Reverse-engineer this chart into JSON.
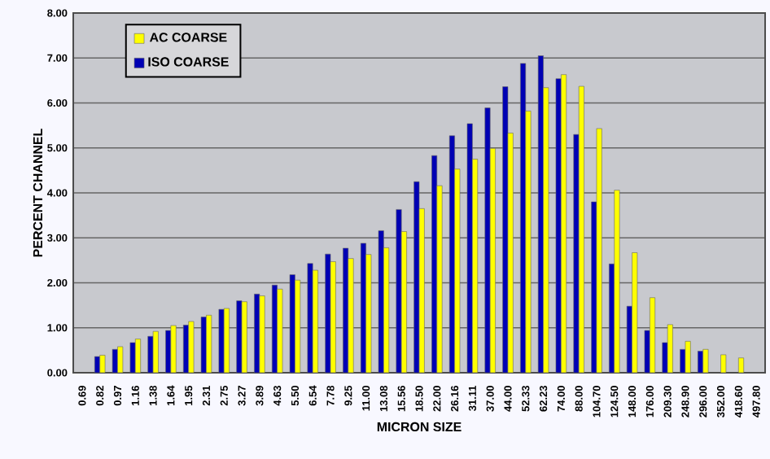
{
  "chart_data": {
    "type": "bar",
    "xlabel": "MICRON SIZE",
    "ylabel": "PERCENT CHANNEL",
    "categories": [
      "0.69",
      "0.82",
      "0.97",
      "1.16",
      "1.38",
      "1.64",
      "1.95",
      "2.31",
      "2.75",
      "3.27",
      "3.89",
      "4.63",
      "5.50",
      "6.54",
      "7.78",
      "9.25",
      "11.00",
      "13.08",
      "15.56",
      "18.50",
      "22.00",
      "26.16",
      "31.11",
      "37.00",
      "44.00",
      "52.33",
      "62.23",
      "74.00",
      "88.00",
      "104.70",
      "124.50",
      "148.00",
      "176.00",
      "209.30",
      "248.90",
      "296.00",
      "352.00",
      "418.60",
      "497.80"
    ],
    "series": [
      {
        "name": "ISO COARSE",
        "color": "#0000b4",
        "values": [
          null,
          0.36,
          0.52,
          0.67,
          0.81,
          0.94,
          1.06,
          1.24,
          1.41,
          1.6,
          1.75,
          1.95,
          2.18,
          2.43,
          2.64,
          2.77,
          2.88,
          3.16,
          3.63,
          4.25,
          4.83,
          5.27,
          5.54,
          5.89,
          6.36,
          6.88,
          7.05,
          6.54,
          5.3,
          3.8,
          2.42,
          1.48,
          0.94,
          0.67,
          0.52,
          0.48,
          null,
          null,
          null
        ]
      },
      {
        "name": "AC COARSE",
        "color": "#ffff00",
        "values": [
          null,
          0.39,
          0.58,
          0.75,
          0.92,
          1.05,
          1.14,
          1.28,
          1.43,
          1.58,
          1.71,
          1.86,
          2.06,
          2.28,
          2.47,
          2.54,
          2.63,
          2.78,
          3.14,
          3.65,
          4.16,
          4.53,
          4.75,
          4.99,
          5.33,
          5.82,
          6.34,
          6.63,
          6.37,
          5.43,
          4.06,
          2.67,
          1.67,
          1.07,
          0.7,
          0.52,
          0.4,
          0.33,
          null
        ]
      }
    ],
    "ylim": [
      0,
      8
    ],
    "yticks": [
      {
        "value": 0,
        "label": "0.00"
      },
      {
        "value": 1,
        "label": "1.00"
      },
      {
        "value": 2,
        "label": "2.00"
      },
      {
        "value": 3,
        "label": "3.00"
      },
      {
        "value": 4,
        "label": "4.00"
      },
      {
        "value": 5,
        "label": "5.00"
      },
      {
        "value": 6,
        "label": "6.00"
      },
      {
        "value": 7,
        "label": "7.00"
      },
      {
        "value": 8,
        "label": "8.00"
      }
    ],
    "grid": "y",
    "legend": "top left"
  }
}
